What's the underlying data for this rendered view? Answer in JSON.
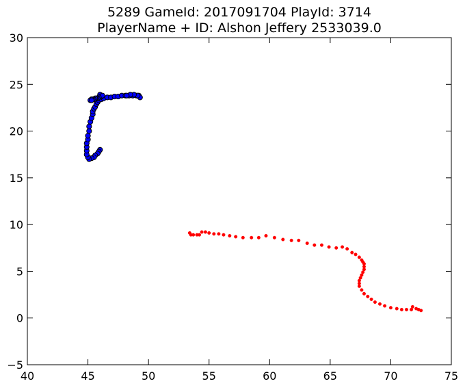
{
  "chart_data": {
    "type": "scatter",
    "title_lines": [
      "5289 GameId: 2017091704 PlayId: 3714",
      "PlayerName + ID: Alshon Jeffery 2533039.0"
    ],
    "xlabel": "",
    "ylabel": "",
    "xlim": [
      40,
      75
    ],
    "ylim": [
      -5,
      30
    ],
    "xticks": [
      40,
      45,
      50,
      55,
      60,
      65,
      70,
      75
    ],
    "yticks": [
      -5,
      0,
      5,
      10,
      15,
      20,
      25,
      30
    ],
    "grid": false,
    "series": [
      {
        "color": "#0000ff",
        "edge_color": "#000000",
        "marker": "large-circle",
        "points": [
          [
            46.0,
            18.0
          ],
          [
            45.9,
            17.8
          ],
          [
            45.8,
            17.6
          ],
          [
            45.6,
            17.4
          ],
          [
            45.5,
            17.2
          ],
          [
            45.3,
            17.1
          ],
          [
            45.1,
            17.0
          ],
          [
            45.0,
            17.2
          ],
          [
            44.9,
            17.5
          ],
          [
            44.9,
            17.9
          ],
          [
            44.9,
            18.3
          ],
          [
            44.9,
            18.7
          ],
          [
            45.0,
            19.1
          ],
          [
            45.0,
            19.5
          ],
          [
            45.1,
            20.0
          ],
          [
            45.1,
            20.5
          ],
          [
            45.2,
            21.0
          ],
          [
            45.3,
            21.4
          ],
          [
            45.4,
            21.8
          ],
          [
            45.4,
            22.1
          ],
          [
            45.5,
            22.4
          ],
          [
            45.6,
            22.6
          ],
          [
            45.7,
            22.9
          ],
          [
            45.8,
            23.1
          ],
          [
            45.9,
            23.3
          ],
          [
            46.1,
            23.4
          ],
          [
            46.3,
            23.5
          ],
          [
            46.6,
            23.6
          ],
          [
            46.9,
            23.6
          ],
          [
            47.2,
            23.7
          ],
          [
            47.5,
            23.7
          ],
          [
            47.8,
            23.8
          ],
          [
            48.1,
            23.8
          ],
          [
            48.4,
            23.8
          ],
          [
            48.7,
            23.8
          ],
          [
            49.0,
            23.8
          ],
          [
            49.2,
            23.8
          ],
          [
            49.3,
            23.6
          ],
          [
            49.1,
            23.8
          ],
          [
            48.8,
            23.9
          ],
          [
            48.5,
            23.9
          ],
          [
            48.2,
            23.8
          ],
          [
            46.0,
            23.9
          ],
          [
            46.1,
            23.7
          ],
          [
            46.2,
            23.8
          ],
          [
            45.9,
            23.6
          ],
          [
            45.8,
            23.5
          ],
          [
            45.7,
            23.5
          ],
          [
            45.6,
            23.5
          ],
          [
            45.5,
            23.4
          ],
          [
            45.4,
            23.4
          ],
          [
            45.3,
            23.4
          ],
          [
            45.2,
            23.3
          ],
          [
            45.3,
            23.3
          ]
        ]
      },
      {
        "color": "#ff0000",
        "edge_color": "#ff0000",
        "marker": "small-circle",
        "points": [
          [
            53.4,
            9.1
          ],
          [
            53.5,
            8.9
          ],
          [
            53.7,
            8.9
          ],
          [
            54.0,
            8.9
          ],
          [
            54.2,
            8.9
          ],
          [
            54.4,
            9.2
          ],
          [
            54.7,
            9.2
          ],
          [
            55.0,
            9.1
          ],
          [
            55.4,
            9.0
          ],
          [
            55.8,
            9.0
          ],
          [
            56.2,
            8.9
          ],
          [
            56.7,
            8.8
          ],
          [
            57.2,
            8.7
          ],
          [
            57.8,
            8.6
          ],
          [
            58.5,
            8.6
          ],
          [
            59.1,
            8.6
          ],
          [
            59.7,
            8.8
          ],
          [
            60.4,
            8.6
          ],
          [
            61.1,
            8.4
          ],
          [
            61.8,
            8.3
          ],
          [
            62.4,
            8.3
          ],
          [
            63.1,
            8.0
          ],
          [
            63.7,
            7.8
          ],
          [
            64.3,
            7.8
          ],
          [
            64.9,
            7.6
          ],
          [
            65.5,
            7.5
          ],
          [
            66.0,
            7.6
          ],
          [
            66.4,
            7.4
          ],
          [
            66.8,
            7.0
          ],
          [
            67.1,
            6.8
          ],
          [
            67.4,
            6.5
          ],
          [
            67.6,
            6.2
          ],
          [
            67.7,
            6.0
          ],
          [
            67.8,
            5.8
          ],
          [
            67.8,
            5.5
          ],
          [
            67.8,
            5.2
          ],
          [
            67.7,
            4.9
          ],
          [
            67.6,
            4.6
          ],
          [
            67.5,
            4.3
          ],
          [
            67.4,
            4.0
          ],
          [
            67.4,
            3.7
          ],
          [
            67.4,
            3.4
          ],
          [
            67.6,
            3.0
          ],
          [
            67.8,
            2.6
          ],
          [
            68.1,
            2.3
          ],
          [
            68.4,
            2.0
          ],
          [
            68.7,
            1.7
          ],
          [
            69.1,
            1.5
          ],
          [
            69.5,
            1.3
          ],
          [
            70.0,
            1.1
          ],
          [
            70.5,
            1.0
          ],
          [
            70.9,
            0.9
          ],
          [
            71.3,
            0.9
          ],
          [
            71.7,
            0.9
          ],
          [
            71.8,
            1.2
          ],
          [
            72.1,
            1.0
          ],
          [
            72.3,
            0.9
          ],
          [
            72.5,
            0.8
          ]
        ]
      }
    ]
  }
}
